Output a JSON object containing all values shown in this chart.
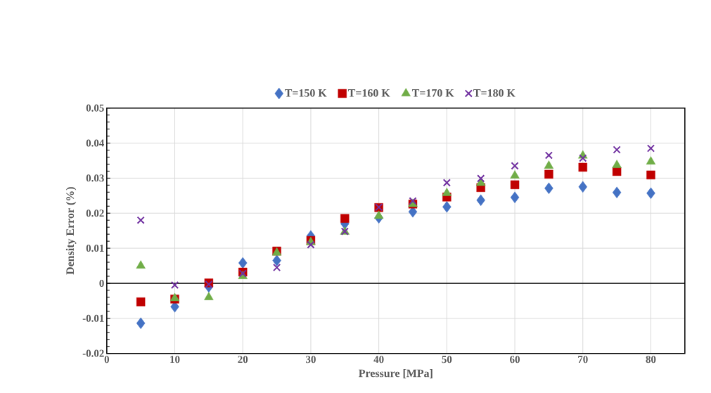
{
  "chart_data": {
    "type": "scatter",
    "xlabel": "Pressure [MPa]",
    "ylabel": "Density Error (%)",
    "x": [
      5,
      10,
      15,
      20,
      25,
      30,
      35,
      40,
      45,
      50,
      55,
      60,
      65,
      70,
      75,
      80
    ],
    "series": [
      {
        "name": "T=150 K",
        "color": "#4472c4",
        "marker": "diamond",
        "values": [
          -0.0114,
          -0.0067,
          -0.001,
          0.0058,
          0.0065,
          0.0135,
          0.017,
          0.0187,
          0.0204,
          0.0218,
          0.0237,
          0.0245,
          0.0271,
          0.0275,
          0.0259,
          0.0257
        ]
      },
      {
        "name": "T=160 K",
        "color": "#c00000",
        "marker": "square",
        "values": [
          -0.0053,
          -0.0045,
          0.0001,
          0.0032,
          0.0092,
          0.0122,
          0.0185,
          0.0216,
          0.0226,
          0.0246,
          0.0273,
          0.0281,
          0.0311,
          0.0331,
          0.0319,
          0.0309
        ]
      },
      {
        "name": "T=170 K",
        "color": "#70ad47",
        "marker": "triangle",
        "values": [
          0.005,
          -0.0043,
          -0.004,
          0.002,
          0.0087,
          0.0117,
          0.0147,
          0.0192,
          0.0226,
          0.0257,
          0.0286,
          0.0307,
          0.0335,
          0.0364,
          0.0337,
          0.0347
        ]
      },
      {
        "name": "T=180 K",
        "color": "#7030a0",
        "marker": "cross",
        "values": [
          0.018,
          -0.0005,
          -0.0003,
          0.0028,
          0.0045,
          0.011,
          0.0148,
          0.0217,
          0.0235,
          0.0287,
          0.0299,
          0.0335,
          0.0365,
          0.0357,
          0.0381,
          0.0385
        ]
      }
    ],
    "xlim": [
      0,
      85
    ],
    "xticks": [
      0,
      10,
      20,
      30,
      40,
      50,
      60,
      70,
      80
    ],
    "ylim": [
      -0.02,
      0.05
    ],
    "yticks": [
      -0.02,
      -0.01,
      0,
      0.01,
      0.02,
      0.03,
      0.04,
      0.05
    ],
    "ref_lines": [
      {
        "axis": "y",
        "value": 0,
        "color": "#000000"
      }
    ],
    "grid": true,
    "legend": "top"
  }
}
